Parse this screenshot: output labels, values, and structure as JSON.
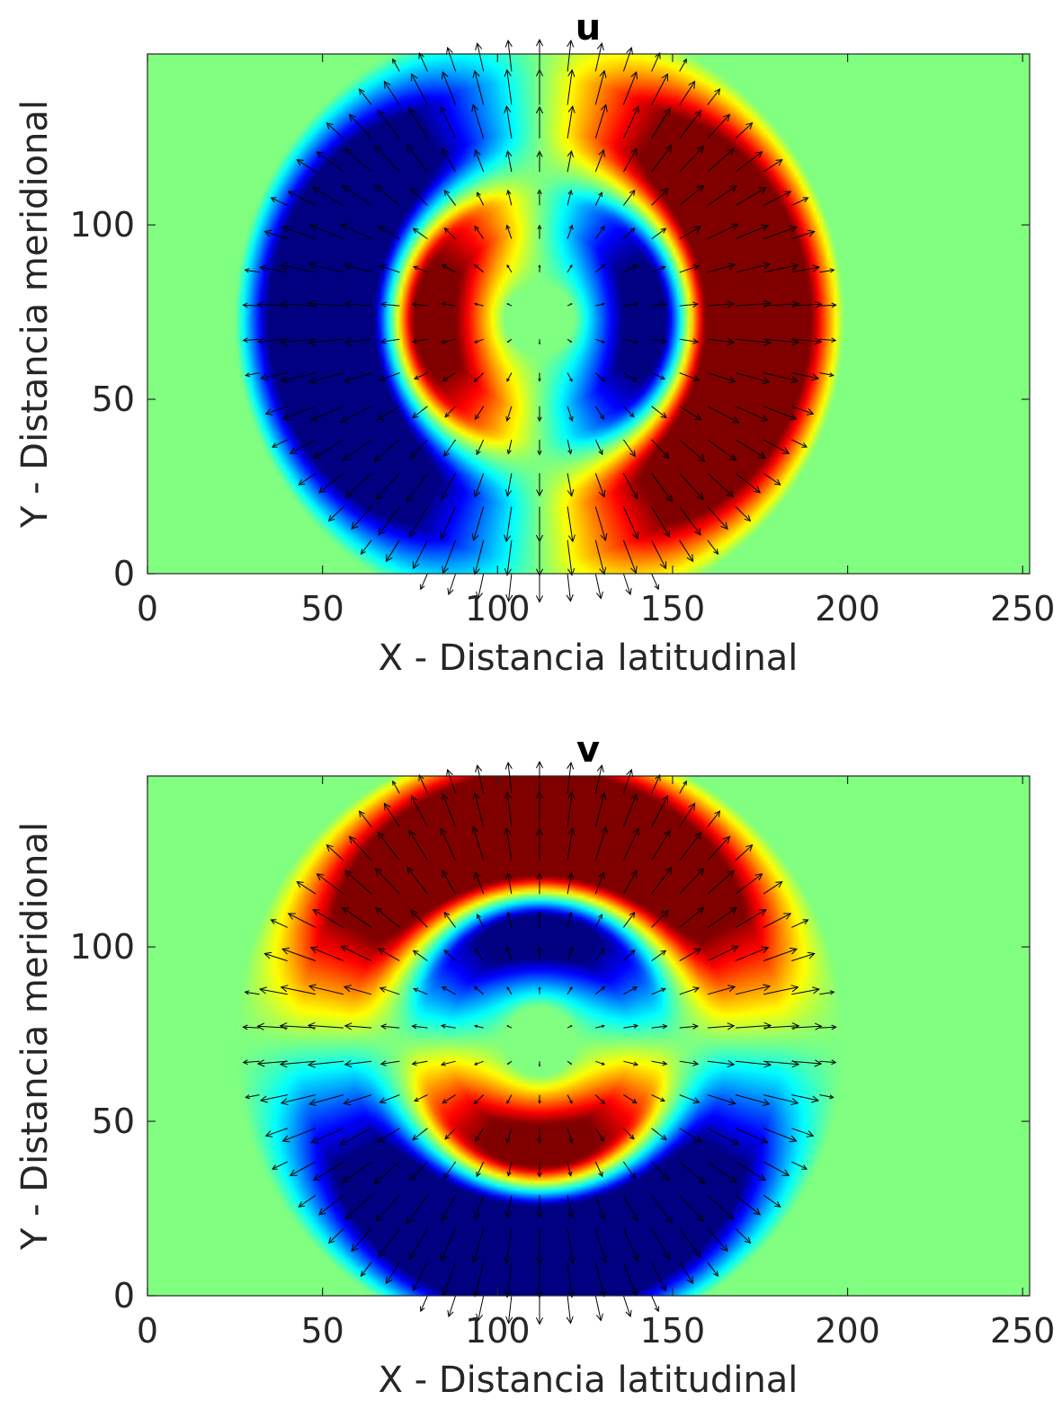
{
  "chart_data": [
    {
      "type": "heatmap",
      "title": "u",
      "xlabel": "X - Distancia latitudinal",
      "ylabel": "Y - Distancia meridional",
      "xlim": [
        0,
        252
      ],
      "ylim": [
        0,
        149
      ],
      "xticks": [
        0,
        50,
        100,
        150,
        200,
        250
      ],
      "yticks": [
        0,
        50,
        100
      ],
      "xtick_labels": [
        "0",
        "50",
        "100",
        "150",
        "200",
        "250"
      ],
      "ytick_labels": [
        "0",
        "50",
        "100"
      ],
      "colormap": "jet",
      "grid": false,
      "overlay": "quiver",
      "field": {
        "description_values": "u velocity component",
        "center": [
          112,
          73
        ],
        "outer_ring": {
          "inner_radius": 45,
          "outer_radius": 78,
          "left_sign": "negative",
          "right_sign": "positive"
        },
        "inner_ring": {
          "inner_radius": 18,
          "outer_radius": 42,
          "left_sign": "positive",
          "right_sign": "negative"
        }
      },
      "quiver": {
        "x_spacing": 8,
        "y_spacing": 9.6,
        "pattern": "radial"
      }
    },
    {
      "type": "heatmap",
      "title": "v",
      "xlabel": "X - Distancia latitudinal",
      "ylabel": "Y - Distancia meridional",
      "xlim": [
        0,
        252
      ],
      "ylim": [
        0,
        149
      ],
      "xticks": [
        0,
        50,
        100,
        150,
        200,
        250
      ],
      "yticks": [
        0,
        50,
        100
      ],
      "xtick_labels": [
        "0",
        "50",
        "100",
        "150",
        "200",
        "250"
      ],
      "ytick_labels": [
        "0",
        "50",
        "100"
      ],
      "colormap": "jet",
      "grid": false,
      "overlay": "quiver",
      "field": {
        "description_values": "v velocity component",
        "center": [
          112,
          73
        ],
        "outer_ring": {
          "inner_radius": 45,
          "outer_radius": 78,
          "top_sign": "positive",
          "bottom_sign": "negative"
        },
        "inner_ring": {
          "inner_radius": 18,
          "outer_radius": 42,
          "top_sign": "negative",
          "bottom_sign": "positive"
        }
      },
      "quiver": {
        "x_spacing": 8,
        "y_spacing": 9.6,
        "pattern": "radial"
      }
    }
  ],
  "colors": {
    "background": "#ffffff",
    "axis": "#262626",
    "arrow": "#000000",
    "zero_level": "#80ff80"
  }
}
